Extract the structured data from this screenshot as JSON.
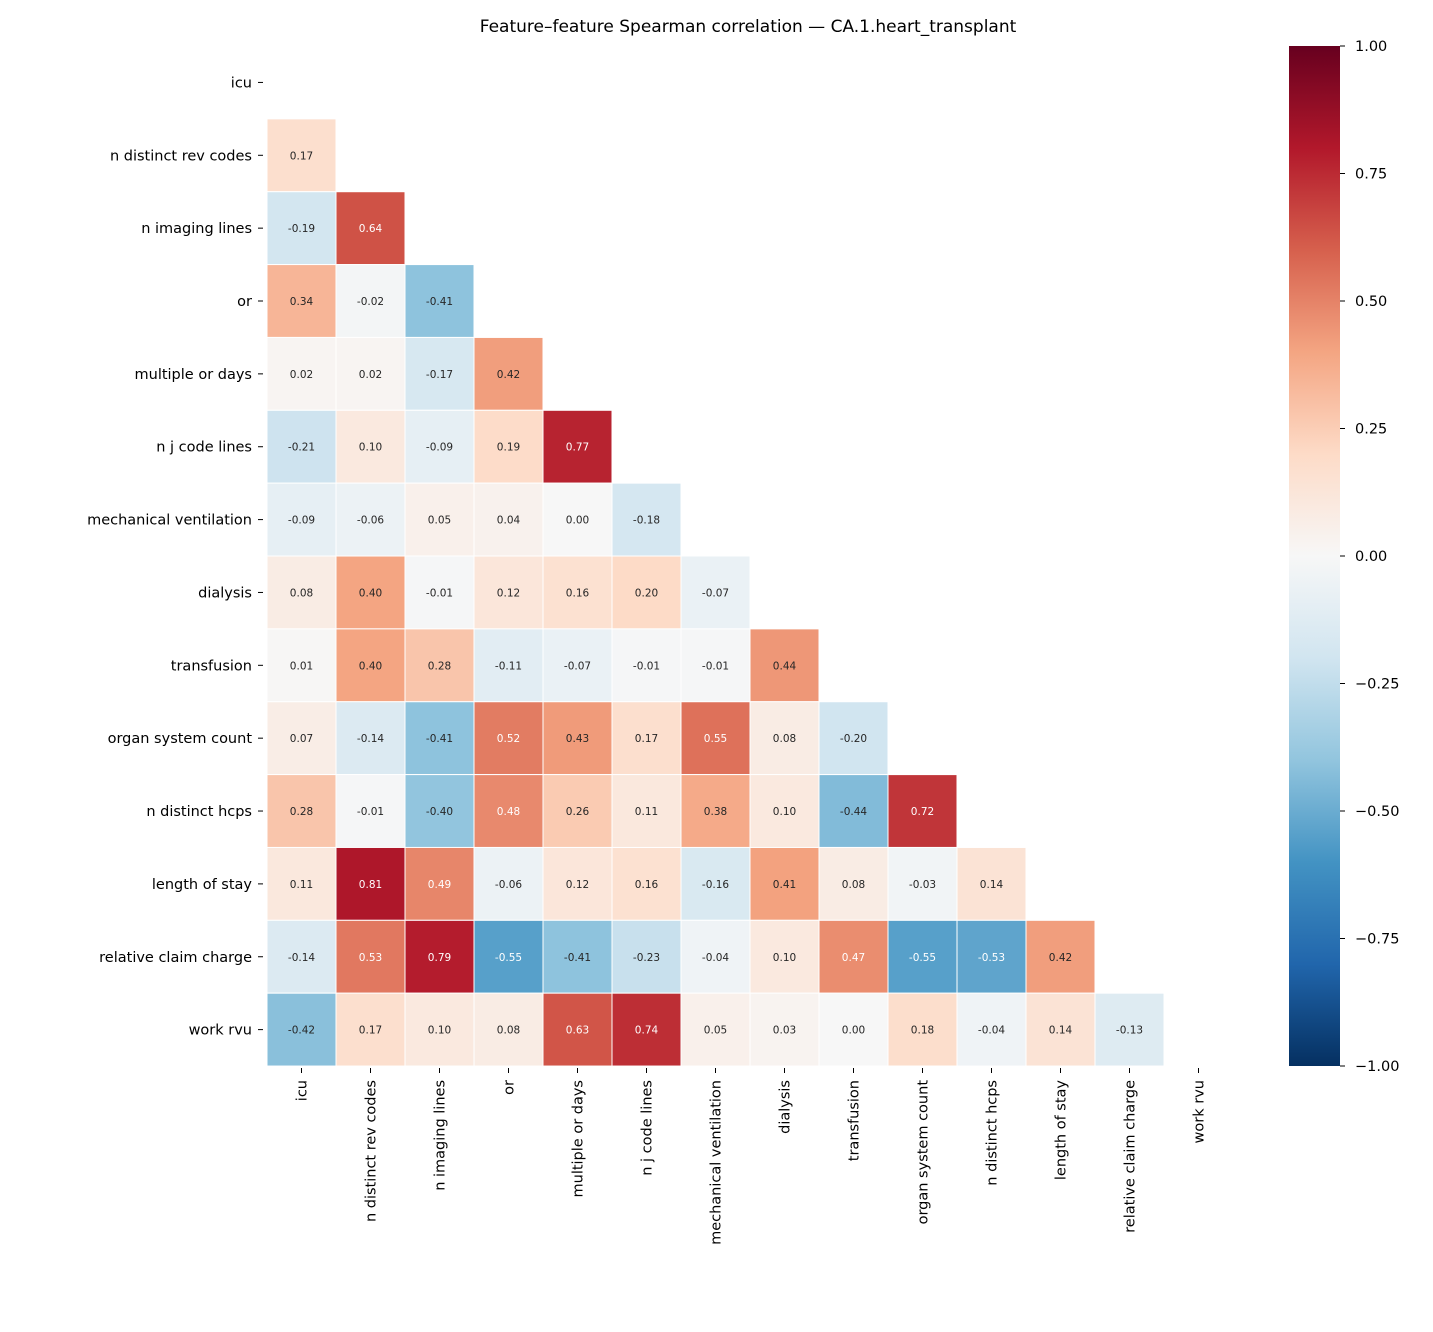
{
  "chart_data": {
    "type": "heatmap",
    "title": "Feature–feature Spearman correlation — CA.1.heart_transplant",
    "labels": [
      "icu",
      "n distinct rev codes",
      "n imaging lines",
      "or",
      "multiple or days",
      "n j code lines",
      "mechanical ventilation",
      "dialysis",
      "transfusion",
      "organ system count",
      "n distinct hcps",
      "length of stay",
      "relative claim charge",
      "work rvu"
    ],
    "mask": "upper triangle incl. diagonal",
    "lower_triangle_values": [
      [],
      [
        0.17
      ],
      [
        -0.19,
        0.64
      ],
      [
        0.34,
        -0.02,
        -0.41
      ],
      [
        0.02,
        0.02,
        -0.17,
        0.42
      ],
      [
        -0.21,
        0.1,
        -0.09,
        0.19,
        0.77
      ],
      [
        -0.09,
        -0.06,
        0.05,
        0.04,
        -0.0,
        -0.18
      ],
      [
        0.08,
        0.4,
        -0.01,
        0.12,
        0.16,
        0.2,
        -0.07
      ],
      [
        0.01,
        0.4,
        0.28,
        -0.11,
        -0.07,
        -0.01,
        -0.01,
        0.44
      ],
      [
        0.07,
        -0.14,
        -0.41,
        0.52,
        0.43,
        0.17,
        0.55,
        0.08,
        -0.2
      ],
      [
        0.28,
        -0.01,
        -0.4,
        0.48,
        0.26,
        0.11,
        0.38,
        0.1,
        -0.44,
        0.72
      ],
      [
        0.11,
        0.81,
        0.49,
        -0.06,
        0.12,
        0.16,
        -0.16,
        0.41,
        0.08,
        -0.03,
        0.14
      ],
      [
        -0.14,
        0.53,
        0.79,
        -0.55,
        -0.41,
        -0.23,
        -0.04,
        0.1,
        0.47,
        -0.55,
        -0.53,
        0.42
      ],
      [
        -0.42,
        0.17,
        0.1,
        0.08,
        0.63,
        0.74,
        0.05,
        0.03,
        0.0,
        0.18,
        -0.04,
        0.14,
        -0.13
      ]
    ],
    "colormap": "RdBu_r",
    "vmin": -1.0,
    "vmax": 1.0,
    "colorbar_ticks": [
      "−1.00",
      "−0.75",
      "−0.50",
      "−0.25",
      "0.00",
      "0.25",
      "0.50",
      "0.75",
      "1.00"
    ],
    "colorbar_tick_values": [
      -1,
      -0.75,
      -0.5,
      -0.25,
      0,
      0.25,
      0.5,
      0.75,
      1
    ],
    "colorbar_stops": [
      "#053061",
      "#2166ac",
      "#4393c3",
      "#92c5de",
      "#d1e5f0",
      "#f7f7f7",
      "#fddbc7",
      "#f4a582",
      "#d6604d",
      "#b2182b",
      "#67001f"
    ]
  }
}
